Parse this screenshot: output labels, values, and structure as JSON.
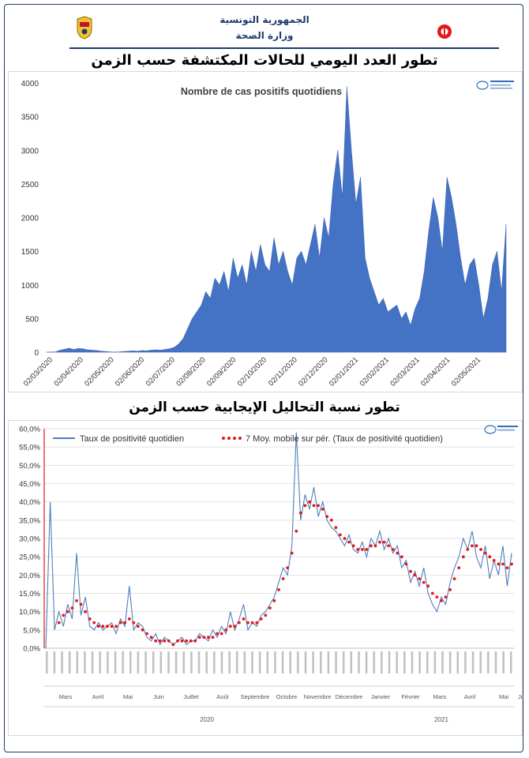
{
  "header": {
    "line1": "الجمهورية التونسية",
    "line2": "وزارة الصحة"
  },
  "colors": {
    "area": "#4472c4",
    "line": "#4f7fbd",
    "moving_avg": "#e0191b",
    "frame": "#1f3a6b"
  },
  "chart_data": [
    {
      "type": "area",
      "title_ar": "تطور العدد اليومي للحالات المكتشفة حسب الزمن",
      "inner_title": "Nombre de cas positifs quotidiens",
      "ylim": [
        0,
        4000
      ],
      "yticks": [
        0,
        500,
        1000,
        1500,
        2000,
        2500,
        3000,
        3500,
        4000
      ],
      "xtick_labels": [
        "02/03/2020",
        "02/04/2020",
        "02/05/2020",
        "02/06/2020",
        "02/07/2020",
        "02/08/2020",
        "02/09/2020",
        "02/10/2020",
        "02/11/2020",
        "02/12/2020",
        "02/01/2021",
        "02/02/2021",
        "02/03/2021",
        "02/04/2021",
        "02/05/2021"
      ],
      "grid": false,
      "series": [
        {
          "values": [
            0,
            0,
            5,
            30,
            45,
            60,
            40,
            55,
            50,
            35,
            30,
            25,
            15,
            10,
            5,
            0,
            5,
            10,
            15,
            20,
            15,
            25,
            20,
            30,
            35,
            30,
            40,
            50,
            70,
            120,
            200,
            350,
            500,
            600,
            700,
            900,
            800,
            1100,
            1000,
            1200,
            900,
            1400,
            1100,
            1300,
            1000,
            1500,
            1200,
            1600,
            1300,
            1200,
            1700,
            1300,
            1500,
            1200,
            1000,
            1400,
            1500,
            1300,
            1600,
            1900,
            1400,
            2000,
            1700,
            2500,
            3000,
            2300,
            3950,
            3000,
            2200,
            2600,
            1400,
            1100,
            900,
            700,
            800,
            600,
            650,
            700,
            500,
            600,
            400,
            650,
            800,
            1200,
            1800,
            2300,
            2000,
            1500,
            2600,
            2300,
            1900,
            1400,
            1000,
            1300,
            1400,
            1000,
            500,
            800,
            1300,
            1500,
            900,
            1900
          ]
        }
      ]
    },
    {
      "type": "line",
      "title_ar": "تطور نسبة التحاليل الإيجابية حسب الزمن",
      "ylim": [
        0,
        60
      ],
      "yticks": [
        "0,0%",
        "5,0%",
        "10,0%",
        "15,0%",
        "20,0%",
        "25,0%",
        "30,0%",
        "35,0%",
        "40,0%",
        "45,0%",
        "50,0%",
        "55,0%",
        "60,0%"
      ],
      "legend_position": "top",
      "grid": true,
      "months_2020": [
        "Mars",
        "Avril",
        "Mai",
        "Juin",
        "Juillet",
        "Août",
        "Septembre",
        "Octobre",
        "Novembre",
        "Décembre"
      ],
      "months_2021": [
        "Janvier",
        "Février",
        "Mars",
        "Avril",
        "Mai",
        "Ju"
      ],
      "years": [
        "2020",
        "2021"
      ],
      "series": [
        {
          "name": "Taux de positivité quotidien",
          "values": [
            0,
            40,
            5,
            10,
            6,
            12,
            8,
            26,
            9,
            14,
            6,
            5,
            7,
            5,
            6,
            7,
            4,
            8,
            6,
            17,
            5,
            7,
            6,
            3,
            2,
            4,
            1,
            3,
            2,
            1,
            2,
            3,
            1,
            2,
            2,
            4,
            3,
            2,
            5,
            3,
            6,
            4,
            10,
            5,
            8,
            12,
            5,
            7,
            6,
            9,
            10,
            12,
            14,
            18,
            22,
            20,
            28,
            59,
            35,
            42,
            38,
            44,
            36,
            40,
            35,
            33,
            32,
            30,
            28,
            31,
            27,
            26,
            29,
            25,
            30,
            28,
            32,
            27,
            30,
            26,
            28,
            22,
            24,
            18,
            21,
            17,
            22,
            15,
            12,
            10,
            14,
            12,
            18,
            22,
            25,
            30,
            27,
            32,
            25,
            22,
            28,
            19,
            24,
            20,
            28,
            17,
            26
          ]
        },
        {
          "name": "7 Moy. mobile sur pér. (Taux de positivité quotidien)",
          "values": [
            null,
            null,
            null,
            7,
            9,
            10,
            11,
            13,
            12,
            10,
            8,
            7,
            6,
            6,
            6,
            6,
            6,
            7,
            7,
            8,
            7,
            6,
            5,
            4,
            3,
            2,
            2,
            2,
            2,
            1,
            2,
            2,
            2,
            2,
            2,
            3,
            3,
            3,
            3,
            4,
            4,
            5,
            6,
            6,
            7,
            8,
            7,
            7,
            7,
            8,
            9,
            11,
            13,
            16,
            19,
            22,
            26,
            32,
            37,
            39,
            40,
            39,
            39,
            38,
            36,
            35,
            33,
            31,
            30,
            29,
            28,
            27,
            27,
            27,
            28,
            28,
            29,
            29,
            28,
            27,
            26,
            25,
            23,
            21,
            20,
            19,
            18,
            17,
            15,
            14,
            13,
            14,
            16,
            19,
            22,
            25,
            27,
            28,
            28,
            27,
            26,
            25,
            24,
            23,
            23,
            22,
            23
          ]
        }
      ]
    }
  ]
}
